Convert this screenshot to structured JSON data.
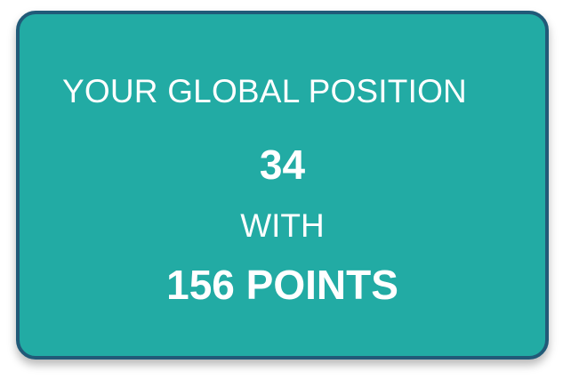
{
  "card": {
    "heading": "YOUR GLOBAL POSITION",
    "position": "34",
    "connector": "WITH",
    "points": "156 POINTS"
  },
  "colors": {
    "card_background": "#22aba4",
    "card_border": "#215a78",
    "text": "#ffffff"
  }
}
